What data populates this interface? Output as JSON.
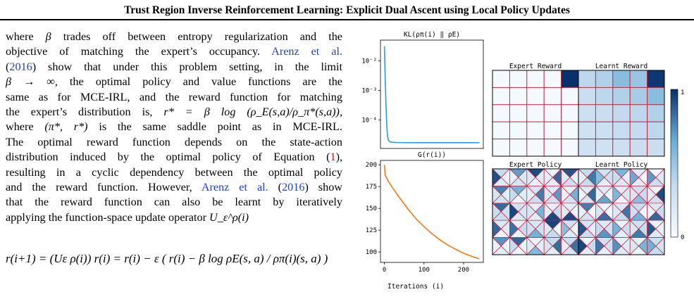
{
  "header": {
    "title": "Trust Region Inverse Reinforcement Learning: Explicit Dual Ascent using Local Policy Updates"
  },
  "body": {
    "lines": [
      [
        "where ",
        "β",
        " trades off between entropy regularization and the"
      ],
      [
        "objective of matching the expert’s occupancy. ",
        "Arenz et al.",
        ""
      ],
      [
        "(",
        "2016",
        ") show that under this problem setting, in the limit"
      ],
      [
        "β → ∞",
        ", the optimal policy and value functions are the"
      ],
      [
        "same as for MCE-IRL, and the reward function for matching"
      ],
      [
        "the expert’s distribution is, ",
        "r* = β log (ρ_E(s,a)/ρ_π*(s,a)),"
      ],
      [
        "where ",
        "(π*, r*)",
        " is the same saddle point as in MCE-IRL."
      ],
      [
        "The optimal reward function depends on the state-action"
      ],
      [
        "distribution induced by the optimal policy of Equation (",
        "1",
        "),"
      ],
      [
        "resulting in a cyclic dependency between the optimal policy"
      ],
      [
        "and the reward function. However, ",
        "Arenz et al.",
        " (",
        "2016",
        ") show"
      ],
      [
        "that the reward function can also be learnt by iteratively"
      ],
      [
        "applying the function-space update operator ",
        "U_ε^ρ(i)"
      ]
    ],
    "equation": "r(i+1) = (Uε ρ(i)) r(i) = r(i) − ε ( r(i) − β log ρE(s, a) / ρπ(i)(s, a) )"
  },
  "chart_data": [
    {
      "type": "line",
      "title": "KL(ρπ(i) ‖ ρE)",
      "yscale": "log",
      "ylim": [
        1.1e-05,
        0.05
      ],
      "xlim": [
        -10,
        250
      ],
      "yticks": [
        "10⁻²",
        "10⁻³",
        "10⁻⁴"
      ],
      "x": [
        0,
        2,
        4,
        6,
        8,
        10,
        14,
        20,
        30,
        50,
        80,
        120,
        180,
        240
      ],
      "y": [
        0.031,
        0.0025,
        0.0003,
        6e-05,
        2.8e-05,
        2.1e-05,
        1.85e-05,
        1.78e-05,
        1.75e-05,
        1.73e-05,
        1.72e-05,
        1.72e-05,
        1.72e-05,
        1.72e-05
      ],
      "color": "#2b9be8"
    },
    {
      "type": "line",
      "title": "G(r(i))",
      "xlabel": "Iterations (i)",
      "xlim": [
        -10,
        250
      ],
      "ylim": [
        88,
        205
      ],
      "xticks": [
        0,
        100,
        200
      ],
      "yticks": [
        200,
        175,
        150,
        125,
        100
      ],
      "x": [
        0,
        2,
        4,
        10,
        20,
        40,
        60,
        80,
        100,
        120,
        140,
        160,
        180,
        200,
        220,
        240
      ],
      "y": [
        200,
        188,
        186,
        181,
        174,
        161,
        149,
        138,
        129,
        121,
        114,
        108,
        103,
        98.5,
        95,
        92
      ],
      "color": "#f07a1a"
    },
    {
      "type": "heatmap",
      "title": "Expert Reward",
      "rows": 5,
      "cols": 5,
      "values": [
        [
          0.02,
          0.02,
          0.02,
          0.02,
          1.0
        ],
        [
          0.02,
          0.02,
          0.02,
          0.02,
          0.02
        ],
        [
          0.02,
          0.02,
          0.02,
          0.02,
          0.02
        ],
        [
          0.02,
          0.02,
          0.02,
          0.02,
          0.02
        ],
        [
          0.02,
          0.02,
          0.02,
          0.02,
          0.02
        ]
      ]
    },
    {
      "type": "heatmap",
      "title": "Learnt Reward",
      "rows": 5,
      "cols": 5,
      "values": [
        [
          0.38,
          0.42,
          0.55,
          0.5,
          0.98
        ],
        [
          0.32,
          0.38,
          0.42,
          0.45,
          0.55
        ],
        [
          0.3,
          0.32,
          0.36,
          0.38,
          0.42
        ],
        [
          0.28,
          0.3,
          0.33,
          0.35,
          0.38
        ],
        [
          0.28,
          0.28,
          0.3,
          0.32,
          0.32
        ]
      ]
    },
    {
      "type": "heatmap",
      "title": "Expert Policy",
      "rows": 5,
      "cols": 5,
      "colorbar": {
        "min": "0",
        "max": "1"
      }
    },
    {
      "type": "heatmap",
      "title": "Learnt Policy",
      "rows": 5,
      "cols": 5
    }
  ]
}
